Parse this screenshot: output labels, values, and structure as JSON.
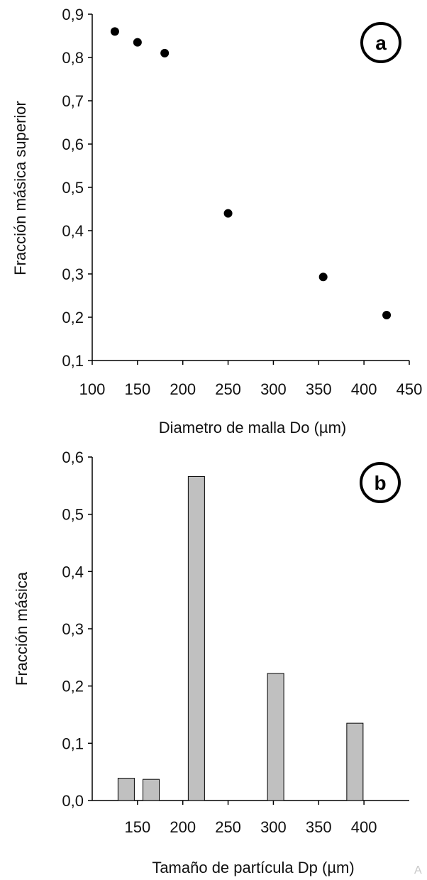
{
  "chart_data": [
    {
      "type": "scatter",
      "panel_label": "a",
      "xlabel": "Diametro de malla Do (µm)",
      "ylabel": "Fracción másica superior",
      "xlim": [
        100,
        450
      ],
      "ylim": [
        0.1,
        0.9
      ],
      "x_ticks": [
        "100",
        "150",
        "200",
        "250",
        "300",
        "350",
        "400",
        "450"
      ],
      "y_ticks": [
        "0,1",
        "0,2",
        "0,3",
        "0,4",
        "0,5",
        "0,6",
        "0,7",
        "0,8",
        "0,9"
      ],
      "x": [
        125,
        150,
        180,
        250,
        355,
        425
      ],
      "y": [
        0.86,
        0.835,
        0.81,
        0.44,
        0.293,
        0.205
      ],
      "marker_color": "#000000"
    },
    {
      "type": "bar",
      "panel_label": "b",
      "xlabel": "Tamaño de partícula Dp (µm)",
      "ylabel": "Fracción másica",
      "xlim": [
        100,
        450
      ],
      "ylim": [
        0.0,
        0.6
      ],
      "x_ticks": [
        "150",
        "200",
        "250",
        "300",
        "350",
        "400"
      ],
      "y_ticks": [
        "0,0",
        "0,1",
        "0,2",
        "0,3",
        "0,4",
        "0,5",
        "0,6"
      ],
      "x": [
        137.5,
        165,
        215,
        302.5,
        390
      ],
      "values": [
        0.039,
        0.037,
        0.566,
        0.222,
        0.135
      ],
      "bar_color": "#c0c0c0"
    }
  ],
  "watermark": "A"
}
